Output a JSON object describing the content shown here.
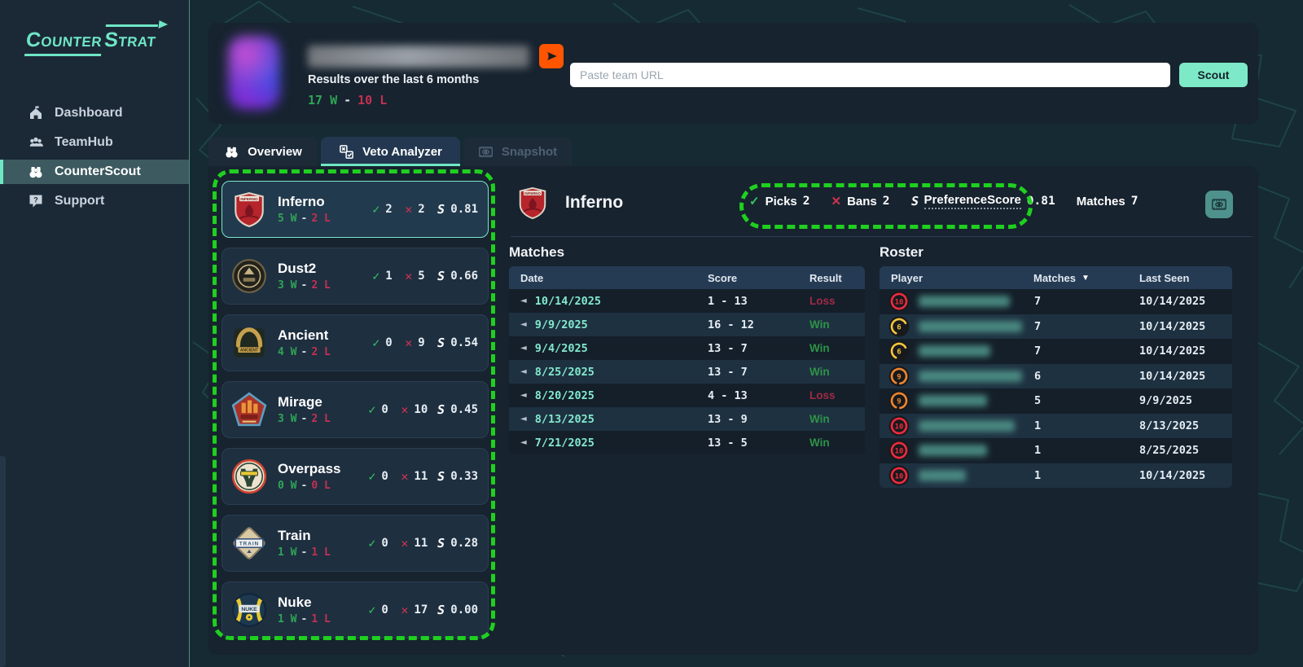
{
  "brand": {
    "part1": "COUNTER",
    "part2": "STRAT"
  },
  "sidebar": {
    "items": [
      {
        "label": "Dashboard"
      },
      {
        "label": "TeamHub"
      },
      {
        "label": "CounterScout",
        "active": true
      },
      {
        "label": "Support"
      }
    ]
  },
  "header": {
    "subtitle": "Results over the last 6 months",
    "wins": "17 W",
    "losses": "10 L"
  },
  "search": {
    "placeholder": "Paste team URL",
    "button_label": "Scout"
  },
  "tabs": [
    {
      "label": "Overview"
    },
    {
      "label": "Veto Analyzer",
      "active": true
    },
    {
      "label": "Snapshot",
      "disabled": true
    }
  ],
  "labels": {
    "sep": "-"
  },
  "icons": {
    "pick_check": "✓",
    "ban_x": "✕",
    "score_s": "S",
    "play_left": "◄",
    "sort_down": "▼"
  },
  "maps": [
    {
      "name": "Inferno",
      "wins": "5 W",
      "losses": "2 L",
      "picks": "2",
      "bans": "2",
      "score": "0.81",
      "selected": true
    },
    {
      "name": "Dust2",
      "wins": "3 W",
      "losses": "2 L",
      "picks": "1",
      "bans": "5",
      "score": "0.66"
    },
    {
      "name": "Ancient",
      "wins": "4 W",
      "losses": "2 L",
      "picks": "0",
      "bans": "9",
      "score": "0.54"
    },
    {
      "name": "Mirage",
      "wins": "3 W",
      "losses": "2 L",
      "picks": "0",
      "bans": "10",
      "score": "0.45"
    },
    {
      "name": "Overpass",
      "wins": "0 W",
      "losses": "0 L",
      "picks": "0",
      "bans": "11",
      "score": "0.33"
    },
    {
      "name": "Train",
      "wins": "1 W",
      "losses": "1 L",
      "picks": "0",
      "bans": "11",
      "score": "0.28"
    },
    {
      "name": "Nuke",
      "wins": "1 W",
      "losses": "1 L",
      "picks": "0",
      "bans": "17",
      "score": "0.00"
    }
  ],
  "detail": {
    "map": "Inferno",
    "picks_label": "Picks",
    "picks": "2",
    "bans_label": "Bans",
    "bans": "2",
    "pref_label": "PreferenceScore",
    "pref": "0.81",
    "matches_label": "Matches",
    "matches": "7"
  },
  "matches_table": {
    "title": "Matches",
    "columns": [
      "Date",
      "Score",
      "Result"
    ],
    "rows": [
      {
        "date": "10/14/2025",
        "score": "1 - 13",
        "result": "Loss"
      },
      {
        "date": "9/9/2025",
        "score": "16 - 12",
        "result": "Win"
      },
      {
        "date": "9/4/2025",
        "score": "13 - 7",
        "result": "Win"
      },
      {
        "date": "8/25/2025",
        "score": "13 - 7",
        "result": "Win"
      },
      {
        "date": "8/20/2025",
        "score": "4 - 13",
        "result": "Loss"
      },
      {
        "date": "8/13/2025",
        "score": "13 - 9",
        "result": "Win"
      },
      {
        "date": "7/21/2025",
        "score": "13 - 5",
        "result": "Win"
      }
    ]
  },
  "roster_table": {
    "title": "Roster",
    "columns": [
      "Player",
      "Matches",
      "Last Seen"
    ],
    "rows": [
      {
        "level": "10",
        "matches": "7",
        "last_seen": "10/14/2025"
      },
      {
        "level": "6",
        "matches": "7",
        "last_seen": "10/14/2025"
      },
      {
        "level": "6",
        "matches": "7",
        "last_seen": "10/14/2025"
      },
      {
        "level": "9",
        "matches": "6",
        "last_seen": "10/14/2025"
      },
      {
        "level": "9",
        "matches": "5",
        "last_seen": "9/9/2025"
      },
      {
        "level": "10",
        "matches": "1",
        "last_seen": "8/13/2025"
      },
      {
        "level": "10",
        "matches": "1",
        "last_seen": "8/25/2025"
      },
      {
        "level": "10",
        "matches": "1",
        "last_seen": "10/14/2025"
      }
    ]
  },
  "colors": {
    "accent_mint": "#7de9c6",
    "win_green": "#2fa556",
    "loss_red": "#c23152",
    "annotation_green": "#1fd01f",
    "faceit_orange": "#ff5500"
  }
}
